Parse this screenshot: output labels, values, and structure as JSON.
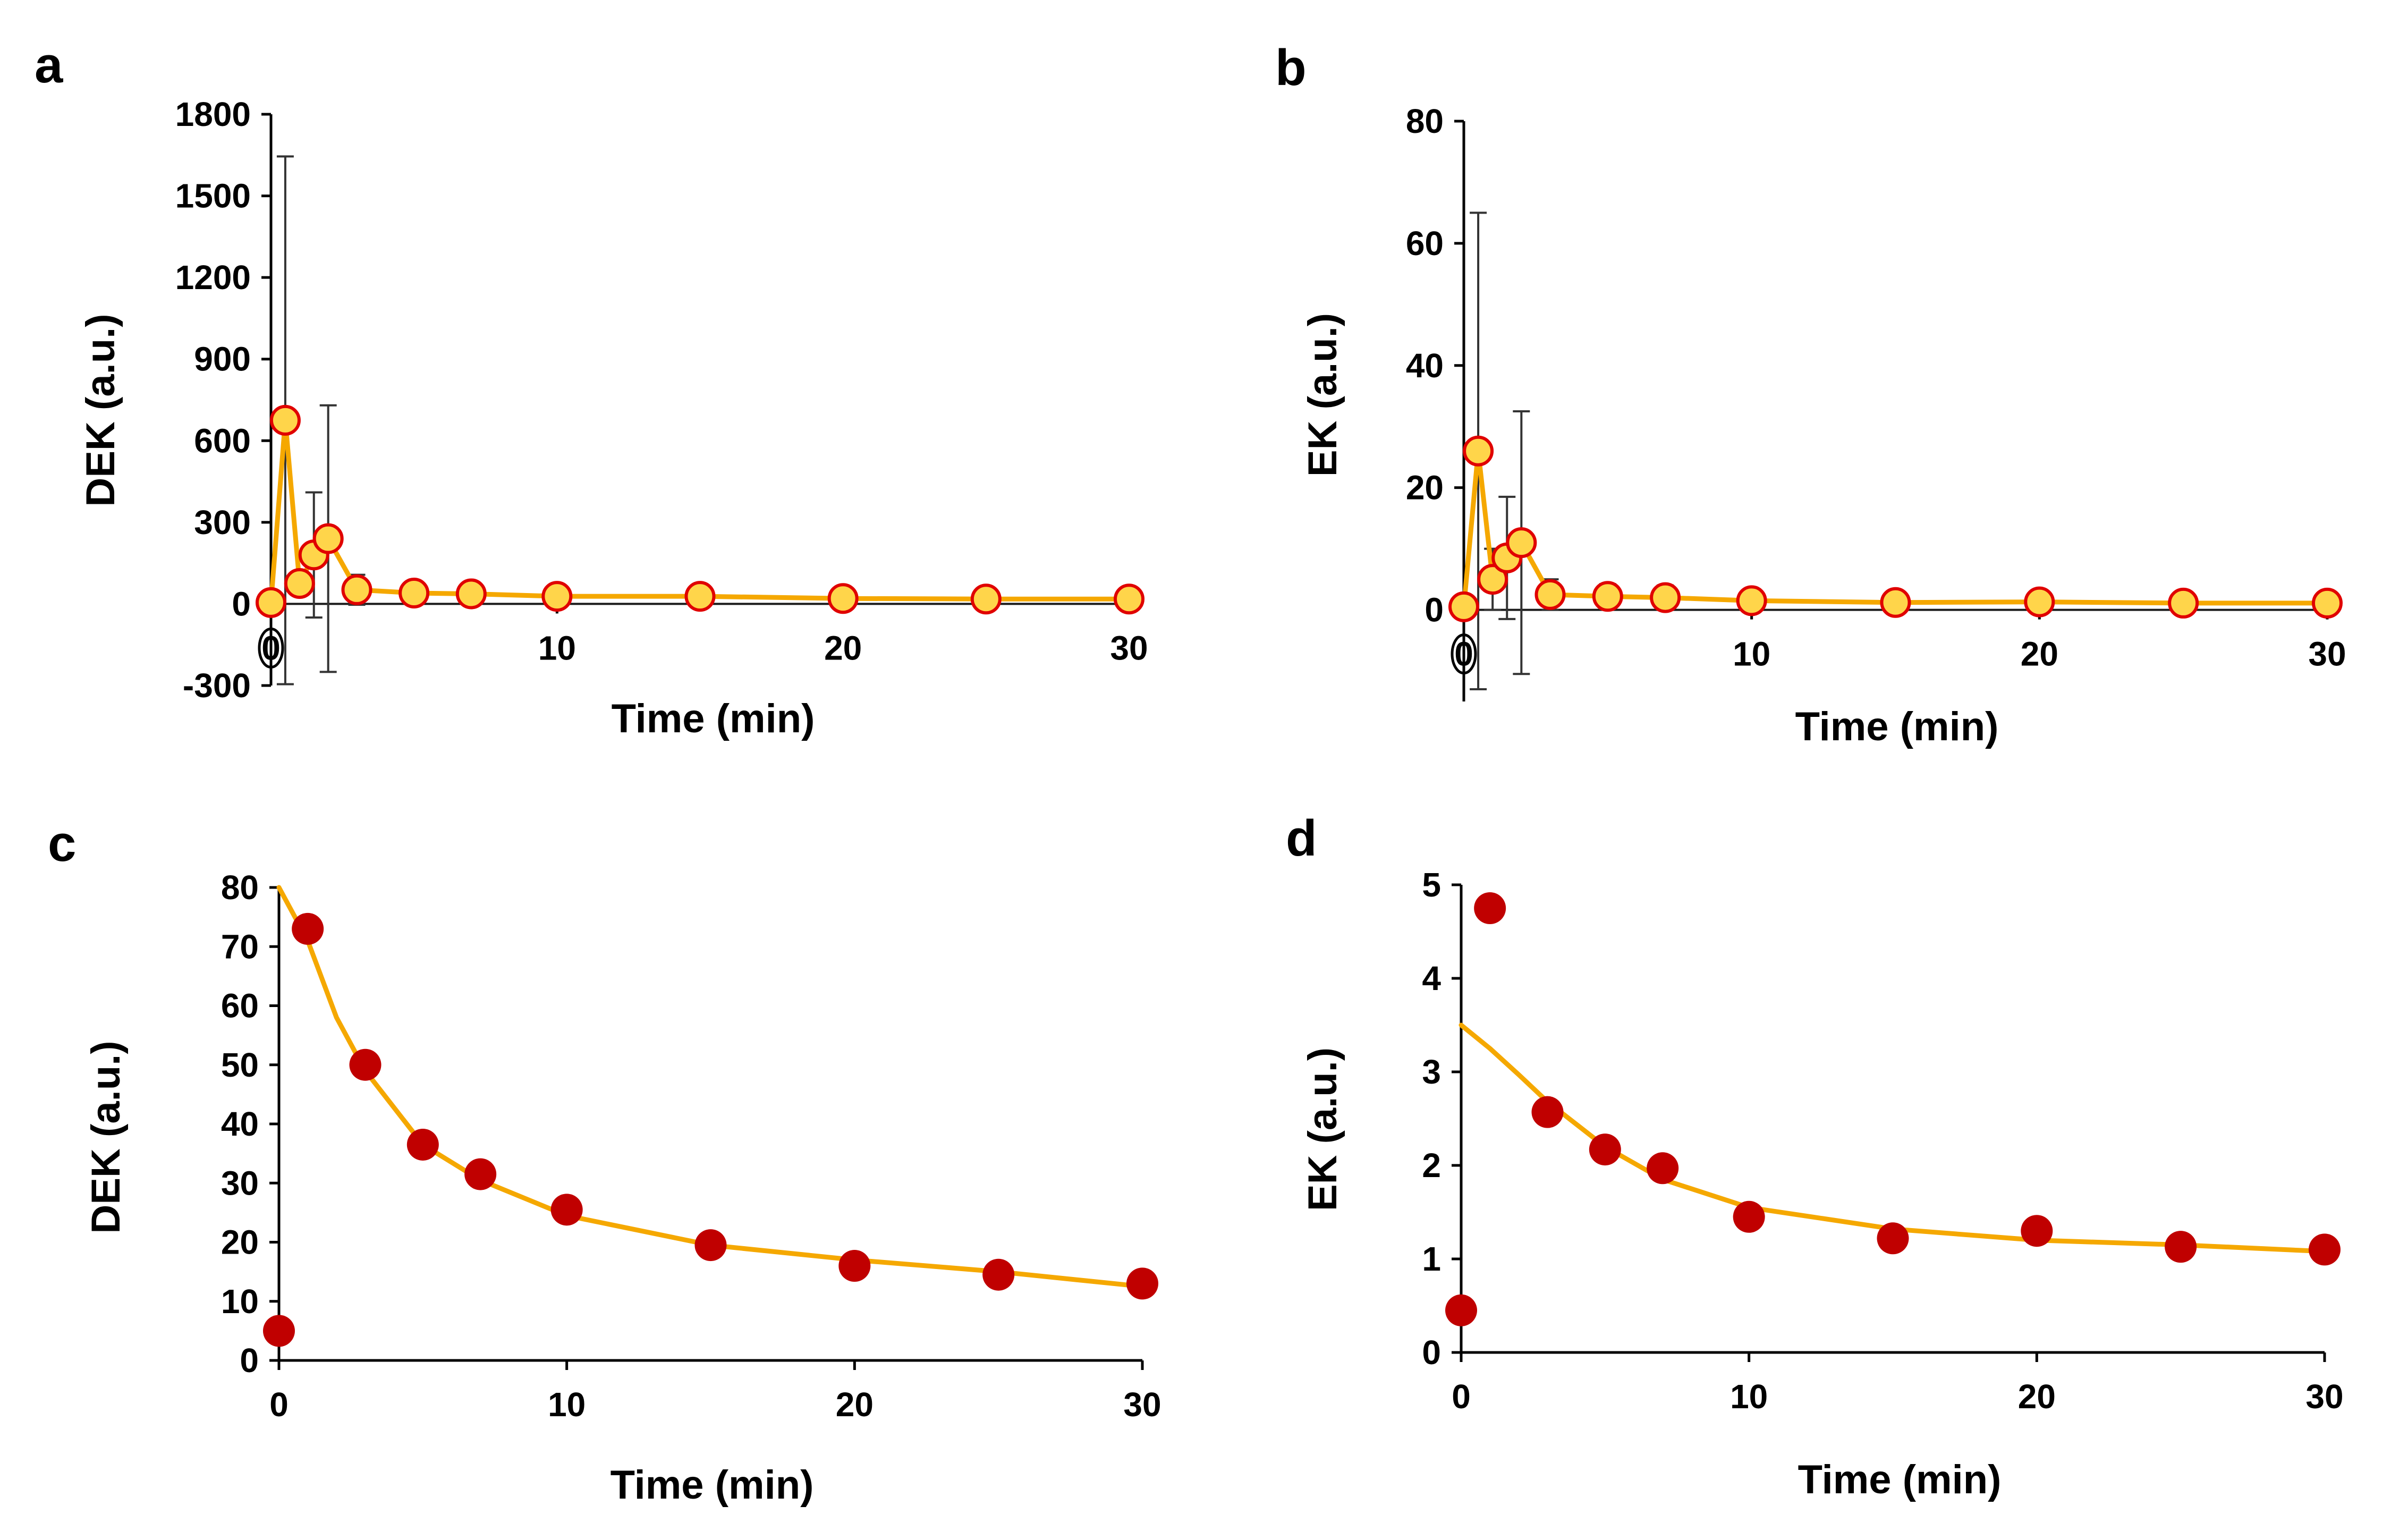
{
  "colors": {
    "line": "#f5a800",
    "marker_fill": "#ffd54a",
    "marker_edge": "#e00000",
    "dot": "#c00000",
    "error_bar": "#333333"
  },
  "chart_data": [
    {
      "id": "a",
      "panel_label": "a",
      "type": "line",
      "series": [
        {
          "name": "DEK",
          "x": [
            0,
            0.5,
            1,
            1.5,
            2,
            3,
            5,
            7,
            10,
            15,
            20,
            25,
            30
          ],
          "y": [
            5,
            675,
            75,
            180,
            240,
            52,
            40,
            37,
            28,
            28,
            20,
            18,
            18
          ],
          "err": [
            0,
            970,
            0,
            230,
            490,
            55,
            30,
            20,
            0,
            0,
            0,
            0,
            0
          ],
          "markers": "filled-circle-outlined"
        }
      ],
      "xticks": [
        0,
        10,
        20,
        30
      ],
      "xtick_labels": [
        "0",
        "10",
        "20",
        "30"
      ],
      "yticks": [
        -300,
        0,
        300,
        600,
        900,
        1200,
        1500,
        1800
      ],
      "ytick_labels": [
        "-300",
        "0",
        "300",
        "600",
        "900",
        "1200",
        "1500",
        "1800"
      ],
      "xlim": [
        0,
        30
      ],
      "ylim": [
        -300,
        1800
      ],
      "xlabel": "Time (min)",
      "ylabel": "DEK (a.u.)",
      "show_fit_line": true,
      "connected": true
    },
    {
      "id": "b",
      "panel_label": "b",
      "type": "line",
      "series": [
        {
          "name": "EK",
          "x": [
            0,
            0.5,
            1,
            1.5,
            2,
            3,
            5,
            7,
            10,
            15,
            20,
            25,
            30
          ],
          "y": [
            0.5,
            26,
            5,
            8.5,
            11,
            2.5,
            2.2,
            2,
            1.5,
            1.2,
            1.3,
            1.1,
            1.1
          ],
          "err": [
            0,
            39,
            5,
            10,
            21.5,
            2.5,
            2,
            2,
            0,
            0,
            0,
            0,
            0
          ],
          "markers": "filled-circle-outlined"
        }
      ],
      "xticks": [
        0,
        10,
        20,
        30
      ],
      "xtick_labels": [
        "0",
        "10",
        "20",
        "30"
      ],
      "yticks": [
        0,
        20,
        40,
        60,
        80
      ],
      "ytick_labels": [
        "0",
        "20",
        "40",
        "60",
        "80"
      ],
      "xlim": [
        0,
        30
      ],
      "ylim": [
        -15,
        80
      ],
      "xlabel": "Time (min)",
      "ylabel": "EK (a.u.)",
      "show_fit_line": true,
      "connected": true
    },
    {
      "id": "c",
      "panel_label": "c",
      "type": "scatter",
      "series": [
        {
          "name": "DEK",
          "x": [
            0,
            1,
            3,
            5,
            7,
            10,
            15,
            20,
            25,
            30
          ],
          "y": [
            5,
            73,
            50,
            36.5,
            31.5,
            25.5,
            19.5,
            16,
            14.5,
            13
          ]
        }
      ],
      "fit": {
        "x": [
          0,
          1,
          2,
          3,
          5,
          7,
          10,
          15,
          20,
          25,
          30
        ],
        "y": [
          82,
          71,
          58,
          49,
          36.5,
          30.5,
          24.5,
          19.5,
          17,
          15,
          12.5
        ]
      },
      "xticks": [
        0,
        10,
        20,
        30
      ],
      "xtick_labels": [
        "0",
        "10",
        "20",
        "30"
      ],
      "yticks": [
        0,
        10,
        20,
        30,
        40,
        50,
        60,
        70,
        80
      ],
      "ytick_labels": [
        "0",
        "10",
        "20",
        "30",
        "40",
        "50",
        "60",
        "70",
        "80"
      ],
      "xlim": [
        0,
        30
      ],
      "ylim": [
        0,
        80
      ],
      "xlabel": "Time (min)",
      "ylabel": "DEK (a.u.)"
    },
    {
      "id": "d",
      "panel_label": "d",
      "type": "scatter",
      "series": [
        {
          "name": "EK",
          "x": [
            0,
            1,
            3,
            5,
            7,
            10,
            15,
            20,
            25,
            30
          ],
          "y": [
            0.45,
            4.75,
            2.57,
            2.17,
            1.97,
            1.45,
            1.22,
            1.3,
            1.13,
            1.1
          ]
        }
      ],
      "fit": {
        "x": [
          0,
          1,
          2,
          3,
          5,
          7,
          10,
          15,
          20,
          25,
          30
        ],
        "y": [
          3.5,
          3.25,
          2.97,
          2.68,
          2.2,
          1.85,
          1.55,
          1.32,
          1.2,
          1.15,
          1.08
        ]
      },
      "xticks": [
        0,
        10,
        20,
        30
      ],
      "xtick_labels": [
        "0",
        "10",
        "20",
        "30"
      ],
      "yticks": [
        0,
        1,
        2,
        3,
        4,
        5
      ],
      "ytick_labels": [
        "0",
        "1",
        "2",
        "3",
        "4",
        "5"
      ],
      "xlim": [
        0,
        30
      ],
      "ylim": [
        0,
        5
      ],
      "xlabel": "Time (min)",
      "ylabel": "EK (a.u.)"
    }
  ]
}
